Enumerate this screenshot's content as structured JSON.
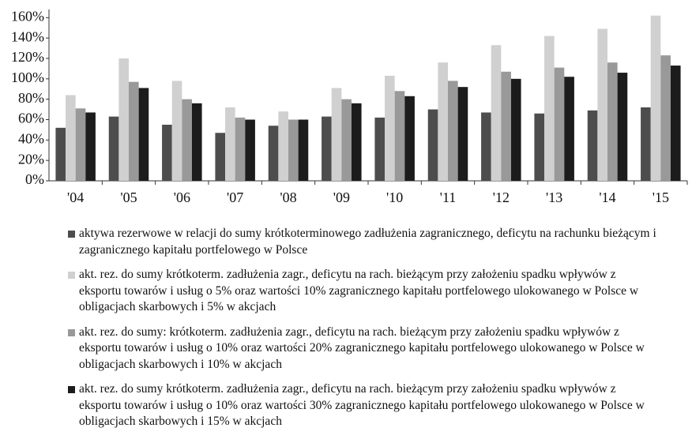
{
  "chart_data": {
    "type": "bar",
    "categories": [
      "'04",
      "'05",
      "'06",
      "'07",
      "'08",
      "'09",
      "'10",
      "'11",
      "'12",
      "'13",
      "'14",
      "'15"
    ],
    "series": [
      {
        "name": "aktywa rezerwowe w relacji do sumy krótkoterminowego zadłużenia zagranicznego, deficytu na rachunku bieżącym i zagranicznego kapitału portfelowego w Polsce",
        "color": "#4d4d4d",
        "values": [
          52,
          63,
          55,
          47,
          54,
          63,
          62,
          70,
          67,
          66,
          69,
          72
        ]
      },
      {
        "name": "akt. rez. do sumy krótkoterm. zadłużenia zagr., deficytu na rach. bieżącym przy założeniu spadku wpływów z eksportu towarów i usług o 5% oraz wartości 10% zagranicznego kapitału portfelowego ulokowanego w Polsce w obligacjach skarbowych i 5% w akcjach",
        "color": "#d0d0d0",
        "values": [
          84,
          120,
          98,
          72,
          68,
          91,
          103,
          116,
          133,
          142,
          149,
          162
        ]
      },
      {
        "name": "akt. rez. do sumy: krótkoterm. zadłużenia zagr., deficytu na rach. bieżącym przy założeniu spadku wpływów z eksportu towarów i usług o 10% oraz wartości 20% zagranicznego kapitału portfelowego ulokowanego w Polsce w obligacjach skarbowych i 10% w akcjach",
        "color": "#999999",
        "values": [
          71,
          97,
          80,
          62,
          60,
          80,
          88,
          98,
          107,
          111,
          116,
          123
        ]
      },
      {
        "name": "akt. rez. do sumy krótkoterm. zadłużenia zagr., deficytu na rach. bieżącym przy założeniu spadku wpływów z eksportu towarów i usług o 10% oraz wartości 30% zagranicznego kapitału portfelowego ulokowanego w Polsce w obligacjach skarbowych i 15% w akcjach",
        "color": "#1c1c1c",
        "values": [
          67,
          91,
          76,
          60,
          60,
          76,
          83,
          92,
          100,
          102,
          106,
          113
        ]
      }
    ],
    "ylim": [
      0,
      168
    ],
    "yticks": [
      {
        "value": 0,
        "label": "0%"
      },
      {
        "value": 20,
        "label": "20%"
      },
      {
        "value": 40,
        "label": "40%"
      },
      {
        "value": 60,
        "label": "60%"
      },
      {
        "value": 80,
        "label": "80%"
      },
      {
        "value": 100,
        "label": "100%"
      },
      {
        "value": 120,
        "label": "120%"
      },
      {
        "value": 140,
        "label": "140%"
      },
      {
        "value": 160,
        "label": "160%"
      }
    ],
    "grid": false
  }
}
